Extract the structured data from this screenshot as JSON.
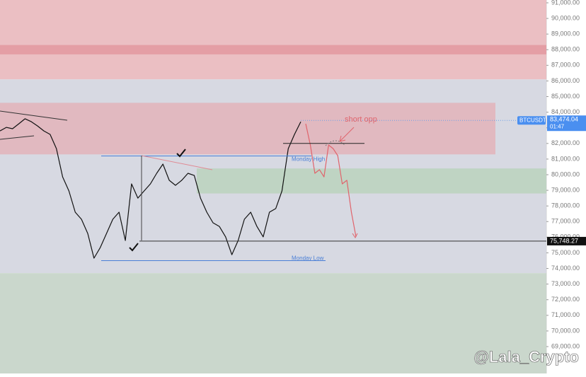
{
  "chart_data": {
    "type": "line",
    "ylim": [
      67280,
      91180
    ],
    "yticks": [
      {
        "value": 69000,
        "label": "69,000.00"
      },
      {
        "value": 70000,
        "label": "70,000.00"
      },
      {
        "value": 71000,
        "label": "71,000.00"
      },
      {
        "value": 72000,
        "label": "72,000.00"
      },
      {
        "value": 73000,
        "label": "73,000.00"
      },
      {
        "value": 74000,
        "label": "74,000.00"
      },
      {
        "value": 75000,
        "label": "75,000.00"
      },
      {
        "value": 76000,
        "label": "76,000.00"
      },
      {
        "value": 77000,
        "label": "77,000.00"
      },
      {
        "value": 78000,
        "label": "78,000.00"
      },
      {
        "value": 79000,
        "label": "79,000.00"
      },
      {
        "value": 80000,
        "label": "80,000.00"
      },
      {
        "value": 81000,
        "label": "81,000.00"
      },
      {
        "value": 82000,
        "label": "82,000.00"
      },
      {
        "value": 83000,
        "label": "83,000.00"
      },
      {
        "value": 84000,
        "label": "84,000.00"
      },
      {
        "value": 85000,
        "label": "85,000.00"
      },
      {
        "value": 86000,
        "label": "86,000.00"
      },
      {
        "value": 87000,
        "label": "87,000.00"
      },
      {
        "value": 88000,
        "label": "88,000.00"
      },
      {
        "value": 89000,
        "label": "89,000.00"
      },
      {
        "value": 90000,
        "label": "90,000.00"
      },
      {
        "value": 91000,
        "label": "91,000.00"
      }
    ],
    "zones": [
      {
        "from": 86100,
        "to": 91180,
        "color": "#e9b8bd"
      },
      {
        "from": 87700,
        "to": 88300,
        "color": "#e39aa2"
      },
      {
        "from": 73700,
        "to": 86100,
        "color": "#d3d5df"
      },
      {
        "from": 67280,
        "to": 73700,
        "color": "#c4d3c7"
      },
      {
        "from": 81300,
        "to": 84600,
        "color": "#e2b5bd"
      },
      {
        "from": 78800,
        "to": 80400,
        "color": "#bcd3c0"
      }
    ],
    "price": {
      "color": "#111111",
      "values": [
        82800,
        83030,
        82940,
        83260,
        83580,
        83390,
        83120,
        82800,
        82580,
        81670,
        79860,
        78960,
        77600,
        77150,
        76240,
        74660,
        75340,
        76240,
        77150,
        77600,
        75790,
        79410,
        78500,
        78960,
        79410,
        80090,
        80680,
        79640,
        79320,
        79640,
        80090,
        79950,
        78500,
        77600,
        76920,
        76690,
        76020,
        74880,
        75790,
        77150,
        77600,
        76690,
        76020,
        77600,
        77830,
        78960,
        81670,
        82580,
        83390
      ]
    },
    "projection": {
      "color": "#e0646c",
      "values": [
        83260,
        81900,
        80090,
        80320,
        79860,
        81900,
        81670,
        81220,
        79410,
        79640,
        77600,
        76020
      ]
    },
    "levels": [
      {
        "label": "Monday High",
        "value": 81200,
        "color": "#4a7fd6"
      },
      {
        "label": "Monday Low",
        "value": 74500,
        "color": "#4a7fd6"
      }
    ],
    "close_level": {
      "value": 75748.27,
      "label": "75,748.27"
    },
    "target_level": 82000,
    "current": {
      "symbol": "BTCUSDT",
      "value": 83474.04,
      "label": "83,474.04",
      "countdown": "01:47"
    },
    "annotation": "short opp",
    "watermark": "@Lala_Crypto"
  }
}
